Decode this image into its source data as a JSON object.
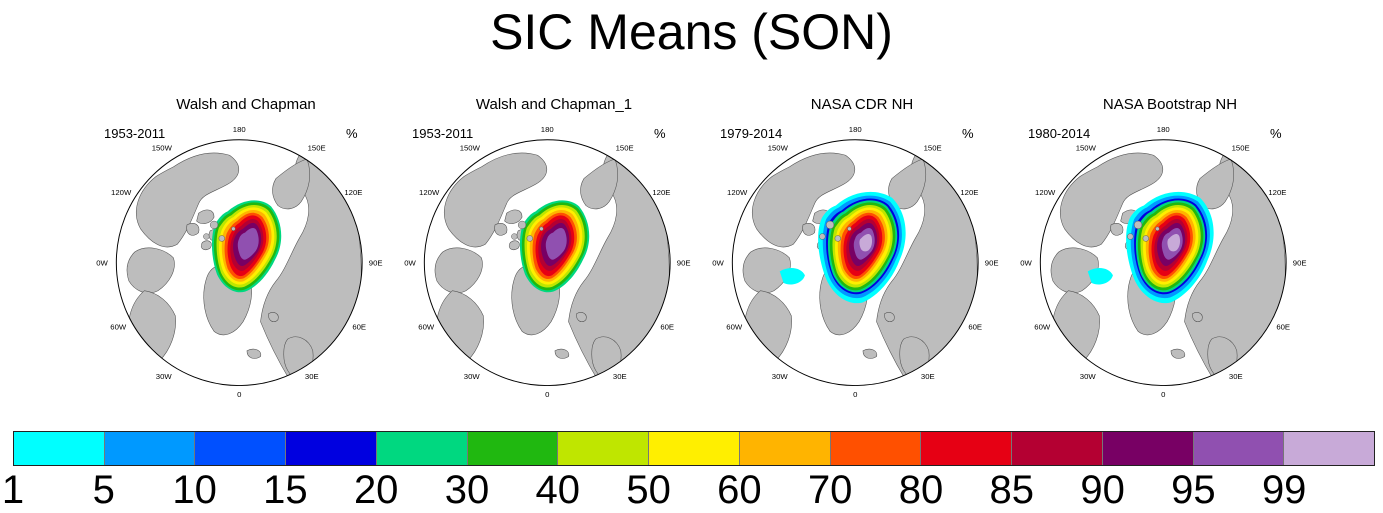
{
  "title": "SIC Means (SON)",
  "units": "%",
  "panels": [
    {
      "title": "Walsh and Chapman",
      "period": "1953-2011",
      "has_low_ice": false
    },
    {
      "title": "Walsh and Chapman_1",
      "period": "1953-2011",
      "has_low_ice": false
    },
    {
      "title": "NASA CDR NH",
      "period": "1979-2014",
      "has_low_ice": true
    },
    {
      "title": "NASA Bootstrap NH",
      "period": "1980-2014",
      "has_low_ice": true
    }
  ],
  "longitude_labels": [
    "180",
    "150E",
    "120E",
    "90E",
    "60E",
    "30E",
    "0",
    "30W",
    "60W",
    "90W",
    "120W",
    "150W"
  ],
  "colorbar": {
    "colors": [
      "#00ffff",
      "#0099ff",
      "#0050ff",
      "#0000e0",
      "#00d880",
      "#20b810",
      "#bfe600",
      "#ffef00",
      "#ffb400",
      "#ff5000",
      "#e60014",
      "#b40032",
      "#780064",
      "#9050b0",
      "#c8aad8"
    ],
    "labels": [
      "1",
      "5",
      "10",
      "15",
      "20",
      "30",
      "40",
      "50",
      "60",
      "70",
      "80",
      "85",
      "90",
      "95",
      "99"
    ]
  },
  "colors": {
    "land": "#bdbdbd",
    "ocean": "#ffffff",
    "coast": "#555555"
  }
}
